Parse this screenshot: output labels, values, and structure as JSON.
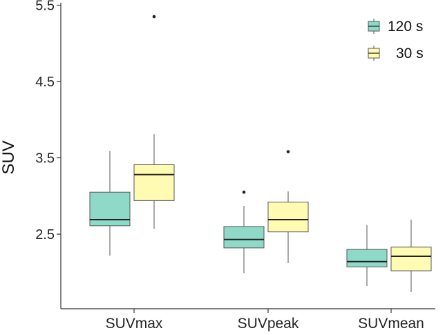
{
  "chart_data": {
    "type": "boxplot",
    "title": "",
    "xlabel": "",
    "ylabel": "SUV",
    "ylim": [
      1.55,
      5.55
    ],
    "yticks": [
      2.5,
      3.5,
      4.5,
      5.5
    ],
    "ytick_labels": [
      "2.5",
      "3.5",
      "4.5",
      "5.5"
    ],
    "grid": false,
    "legend_position": "top-right",
    "categories": [
      "SUVmax",
      "SUVpeak",
      "SUVmean"
    ],
    "series": [
      {
        "name": "120 s",
        "color": "#8FD9C8",
        "boxes": [
          {
            "whisker_low": 2.22,
            "q1": 2.61,
            "median": 2.69,
            "q3": 3.05,
            "whisker_high": 3.59,
            "outliers": []
          },
          {
            "whisker_low": 1.99,
            "q1": 2.32,
            "median": 2.43,
            "q3": 2.6,
            "whisker_high": 2.87,
            "outliers": [
              3.05
            ]
          },
          {
            "whisker_low": 1.82,
            "q1": 2.07,
            "median": 2.14,
            "q3": 2.3,
            "whisker_high": 2.62,
            "outliers": []
          }
        ]
      },
      {
        "name": "30 s",
        "color": "#FFFBB3",
        "boxes": [
          {
            "whisker_low": 2.57,
            "q1": 2.94,
            "median": 3.28,
            "q3": 3.41,
            "whisker_high": 3.81,
            "outliers": [
              5.35
            ]
          },
          {
            "whisker_low": 2.12,
            "q1": 2.53,
            "median": 2.69,
            "q3": 2.92,
            "whisker_high": 3.06,
            "outliers": [
              3.58
            ]
          },
          {
            "whisker_low": 1.74,
            "q1": 2.02,
            "median": 2.21,
            "q3": 2.33,
            "whisker_high": 2.69,
            "outliers": []
          }
        ]
      }
    ]
  }
}
